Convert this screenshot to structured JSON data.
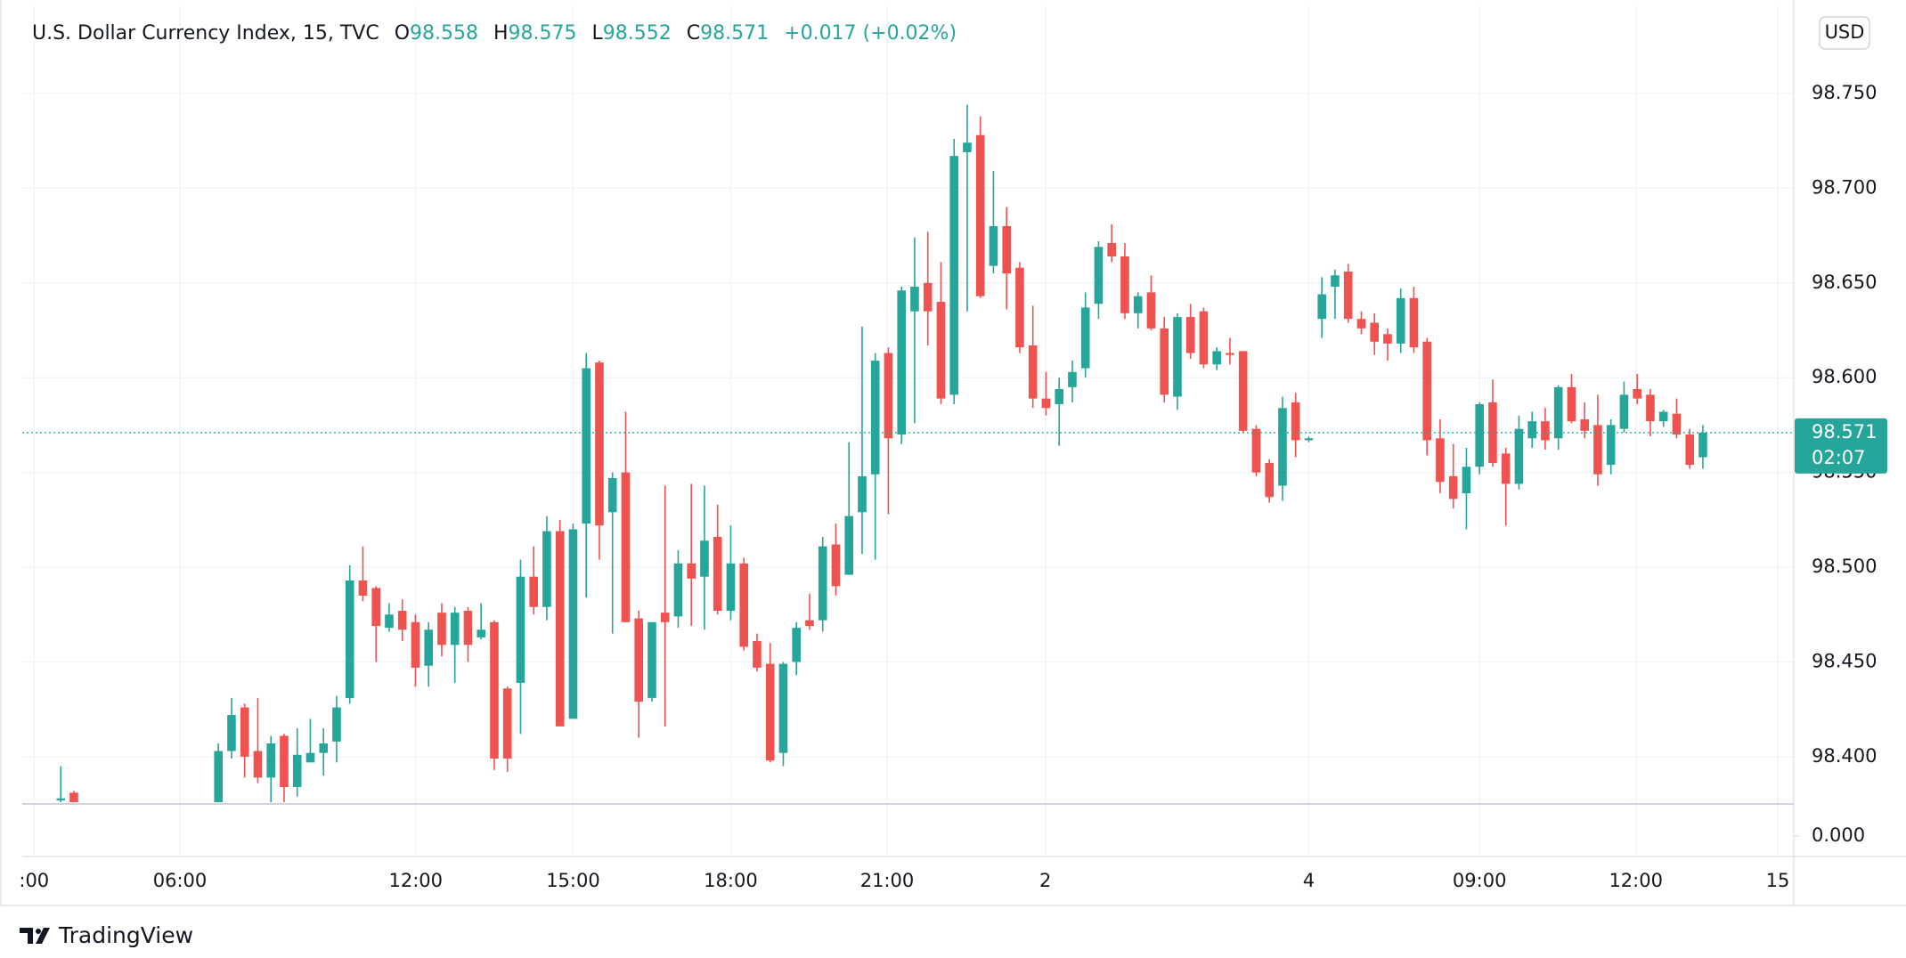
{
  "chart_data": {
    "type": "candlestick",
    "title": "U.S. Dollar Currency Index, 15, TVC",
    "ohlc_header": [
      {
        "key": "O",
        "value": 98.558
      },
      {
        "key": "H",
        "value": 98.575
      },
      {
        "key": "L",
        "value": 98.552
      },
      {
        "key": "C",
        "value": 98.571
      }
    ],
    "change": "+0.017 (+0.02%)",
    "currency": "USD",
    "watermark": "TradingView",
    "up_color": "#26a69a",
    "down_color": "#ef5350",
    "grid": true,
    "open": [
      98.377,
      98.381,
      null,
      null,
      null,
      null,
      null,
      null,
      null,
      null,
      null,
      null,
      98.37,
      98.403,
      98.426,
      98.403,
      98.389,
      98.411,
      98.384,
      98.397,
      98.402,
      98.408,
      98.431,
      98.493,
      98.489,
      98.468,
      98.477,
      98.471,
      98.448,
      98.476,
      98.459,
      98.477,
      98.463,
      98.471,
      98.436,
      98.439,
      98.495,
      98.479,
      98.519,
      98.42,
      98.523,
      98.608,
      98.529,
      98.55,
      98.473,
      98.431,
      98.476,
      98.474,
      98.502,
      98.495,
      98.516,
      98.477,
      98.502,
      98.461,
      98.449,
      98.402,
      98.45,
      98.472,
      98.472,
      98.512,
      98.496,
      98.529,
      98.549,
      98.613,
      98.57,
      98.635,
      98.65,
      98.64,
      98.591,
      98.719,
      98.728,
      98.659,
      98.68,
      98.658,
      98.617,
      98.589,
      98.586,
      98.595,
      98.605,
      98.639,
      98.671,
      98.664,
      98.634,
      98.645,
      98.626,
      98.59,
      98.632,
      98.635,
      98.607,
      98.613,
      98.614,
      98.573,
      98.555,
      98.543,
      98.587,
      98.567,
      98.631,
      98.648,
      98.656,
      98.631,
      98.629,
      98.623,
      98.618,
      98.642,
      98.619,
      98.568,
      98.548,
      98.539,
      98.553,
      98.587,
      98.56,
      98.544,
      98.568,
      98.577,
      98.568,
      98.595,
      98.578,
      98.575,
      98.554,
      98.573,
      98.594,
      98.591,
      98.577,
      98.581,
      98.57,
      98.558
    ],
    "high": [
      98.395,
      98.382,
      null,
      null,
      null,
      null,
      null,
      null,
      null,
      null,
      null,
      null,
      98.407,
      98.431,
      98.428,
      98.431,
      98.411,
      98.412,
      98.415,
      98.42,
      98.415,
      98.432,
      98.501,
      98.511,
      98.49,
      98.481,
      98.483,
      98.475,
      98.471,
      98.481,
      98.479,
      98.479,
      98.481,
      98.472,
      98.437,
      98.504,
      98.511,
      98.527,
      98.525,
      98.523,
      98.613,
      98.609,
      98.55,
      98.582,
      98.477,
      98.471,
      98.543,
      98.509,
      98.544,
      98.543,
      98.533,
      98.522,
      98.505,
      98.465,
      98.46,
      98.45,
      98.471,
      98.486,
      98.516,
      98.523,
      98.566,
      98.627,
      98.613,
      98.616,
      98.648,
      98.674,
      98.677,
      98.661,
      98.726,
      98.744,
      98.738,
      98.709,
      98.69,
      98.661,
      98.638,
      98.603,
      98.6,
      98.609,
      98.645,
      98.672,
      98.681,
      98.671,
      98.645,
      98.654,
      98.632,
      98.634,
      98.639,
      98.637,
      98.616,
      98.621,
      98.614,
      98.575,
      98.557,
      98.59,
      98.592,
      98.569,
      98.653,
      98.657,
      98.66,
      98.635,
      98.634,
      98.626,
      98.647,
      98.648,
      98.621,
      98.578,
      98.565,
      98.563,
      98.587,
      98.599,
      98.563,
      98.58,
      98.582,
      98.584,
      98.596,
      98.602,
      98.587,
      98.591,
      98.578,
      98.598,
      98.602,
      98.594,
      98.583,
      98.589,
      98.573,
      98.575
    ],
    "low": [
      98.376,
      98.376,
      null,
      null,
      null,
      null,
      null,
      null,
      null,
      null,
      null,
      null,
      98.36,
      98.399,
      98.389,
      98.386,
      98.376,
      98.376,
      98.379,
      98.397,
      98.39,
      98.397,
      98.428,
      98.482,
      98.45,
      98.466,
      98.461,
      98.437,
      98.437,
      98.453,
      98.439,
      98.45,
      98.462,
      98.393,
      98.392,
      98.412,
      98.475,
      98.472,
      98.416,
      98.42,
      98.484,
      98.504,
      98.465,
      98.471,
      98.41,
      98.429,
      98.416,
      98.468,
      98.469,
      98.467,
      98.475,
      98.472,
      98.456,
      98.445,
      98.397,
      98.395,
      98.443,
      98.467,
      98.466,
      98.485,
      98.496,
      98.507,
      98.504,
      98.528,
      98.565,
      98.576,
      98.617,
      98.586,
      98.586,
      98.635,
      98.642,
      98.655,
      98.636,
      98.613,
      98.584,
      98.58,
      98.564,
      98.587,
      98.6,
      98.631,
      98.661,
      98.631,
      98.626,
      98.625,
      98.587,
      98.583,
      98.61,
      98.605,
      98.604,
      98.607,
      98.571,
      98.548,
      98.534,
      98.535,
      98.558,
      98.566,
      98.621,
      98.631,
      98.629,
      98.623,
      98.612,
      98.609,
      98.613,
      98.613,
      98.559,
      98.539,
      98.531,
      98.52,
      98.549,
      98.553,
      98.522,
      98.541,
      98.563,
      98.562,
      98.562,
      98.576,
      98.568,
      98.543,
      98.549,
      98.571,
      98.586,
      98.569,
      98.574,
      98.568,
      98.552,
      98.552
    ],
    "close": [
      98.378,
      98.376,
      null,
      null,
      null,
      null,
      null,
      null,
      null,
      null,
      null,
      null,
      98.403,
      98.422,
      98.4,
      98.389,
      98.407,
      98.384,
      98.401,
      98.402,
      98.407,
      98.426,
      98.493,
      98.485,
      98.469,
      98.475,
      98.467,
      98.447,
      98.467,
      98.459,
      98.476,
      98.459,
      98.467,
      98.399,
      98.399,
      98.495,
      98.479,
      98.519,
      98.416,
      98.52,
      98.605,
      98.522,
      98.547,
      98.471,
      98.429,
      98.471,
      98.471,
      98.502,
      98.494,
      98.514,
      98.477,
      98.502,
      98.458,
      98.447,
      98.398,
      98.449,
      98.468,
      98.469,
      98.511,
      98.49,
      98.527,
      98.548,
      98.609,
      98.568,
      98.646,
      98.648,
      98.635,
      98.589,
      98.717,
      98.724,
      98.643,
      98.68,
      98.655,
      98.616,
      98.589,
      98.584,
      98.594,
      98.603,
      98.637,
      98.669,
      98.664,
      98.634,
      98.643,
      98.626,
      98.591,
      98.632,
      98.613,
      98.607,
      98.614,
      98.612,
      98.572,
      98.55,
      98.537,
      98.584,
      98.567,
      98.568,
      98.644,
      98.654,
      98.631,
      98.626,
      98.619,
      98.618,
      98.642,
      98.616,
      98.567,
      98.545,
      98.536,
      98.553,
      98.586,
      98.555,
      98.544,
      98.573,
      98.577,
      98.567,
      98.595,
      98.577,
      98.572,
      98.549,
      98.575,
      98.591,
      98.589,
      98.577,
      98.582,
      98.57,
      98.554,
      98.571
    ],
    "xlim": [
      -2.93,
      131.92
    ],
    "xticks": [
      {
        "value": -2.03,
        "label": ":00"
      },
      {
        "value": 9.07,
        "label": "06:00"
      },
      {
        "value": 27.02,
        "label": "12:00"
      },
      {
        "value": 39.0,
        "label": "15:00"
      },
      {
        "value": 51.0,
        "label": "18:00"
      },
      {
        "value": 62.9,
        "label": "21:00"
      },
      {
        "value": 74.95,
        "label": "2"
      },
      {
        "value": 95.0,
        "label": "4"
      },
      {
        "value": 108.0,
        "label": "09:00"
      },
      {
        "value": 119.9,
        "label": "12:00"
      },
      {
        "value": 130.7,
        "label": "15"
      }
    ],
    "ylim": [
      98.376,
      98.796
    ],
    "yticks": [
      {
        "value": 98.4,
        "label": "98.400"
      },
      {
        "value": 98.45,
        "label": "98.450"
      },
      {
        "value": 98.5,
        "label": "98.500"
      },
      {
        "value": 98.55,
        "label": "98.550"
      },
      {
        "value": 98.6,
        "label": "98.600"
      },
      {
        "value": 98.65,
        "label": "98.650"
      },
      {
        "value": 98.7,
        "label": "98.700"
      },
      {
        "value": 98.75,
        "label": "98.750"
      }
    ],
    "last_price": {
      "value": 98.571,
      "label": "98.571"
    },
    "countdown": "02:07",
    "lower_pane": {
      "yticks": [
        {
          "value": 0,
          "label": "0.000"
        }
      ]
    }
  }
}
